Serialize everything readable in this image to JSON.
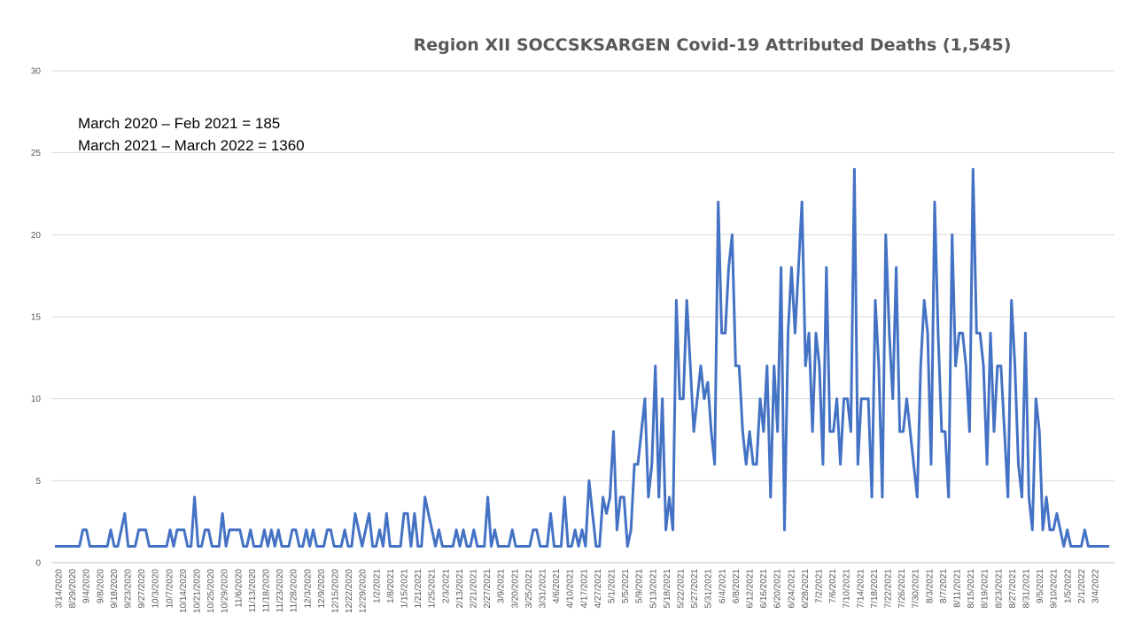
{
  "chart_data": {
    "type": "line",
    "title": "Region XII SOCCSKSARGEN Covid-19 Attributed Deaths (1,545)",
    "annotations": [
      "March 2020 – Feb 2021 = 185",
      "March 2021 – March 2022 =  1360"
    ],
    "xlabel": "",
    "ylabel": "",
    "ylim": [
      0,
      30
    ],
    "yticks": [
      0,
      5,
      10,
      15,
      20,
      25,
      30
    ],
    "grid": true,
    "legend": "none",
    "colors": {
      "line": "#4472c4"
    },
    "x_tick_labels": [
      "3/14/2020",
      "8/29/2020",
      "9/4/2020",
      "9/8/2020",
      "9/18/2020",
      "9/23/2020",
      "9/27/2020",
      "10/3/2020",
      "10/7/2020",
      "10/14/2020",
      "10/21/2020",
      "10/25/2020",
      "10/29/2020",
      "11/6/2020",
      "11/13/2020",
      "11/18/2020",
      "11/23/2020",
      "11/28/2020",
      "12/3/2020",
      "12/9/2020",
      "12/15/2020",
      "12/22/2020",
      "12/29/2020",
      "1/2/2021",
      "1/8/2021",
      "1/15/2021",
      "1/21/2021",
      "1/25/2021",
      "2/3/2021",
      "2/13/2021",
      "2/21/2021",
      "2/27/2021",
      "3/9/2021",
      "3/20/2021",
      "3/25/2021",
      "3/31/2021",
      "4/6/2021",
      "4/10/2021",
      "4/17/2021",
      "4/27/2021",
      "5/1/2021",
      "5/5/2021",
      "5/9/2021",
      "5/13/2021",
      "5/18/2021",
      "5/22/2021",
      "5/27/2021",
      "5/31/2021",
      "6/4/2021",
      "6/8/2021",
      "6/12/2021",
      "6/16/2021",
      "6/20/2021",
      "6/24/2021",
      "6/28/2021",
      "7/2/2021",
      "7/6/2021",
      "7/10/2021",
      "7/14/2021",
      "7/18/2021",
      "7/22/2021",
      "7/26/2021",
      "7/30/2021",
      "8/3/2021",
      "8/7/2021",
      "8/11/2021",
      "8/15/2021",
      "8/19/2021",
      "8/23/2021",
      "8/27/2021",
      "8/31/2021",
      "9/5/2021",
      "9/10/2021",
      "1/5/2022",
      "2/1/2022",
      "3/4/2022"
    ],
    "series": [
      {
        "values": [
          1,
          1,
          1,
          1,
          1,
          1,
          1,
          1,
          2,
          2,
          1,
          1,
          1,
          1,
          1,
          1,
          2,
          1,
          1,
          2,
          3,
          1,
          1,
          1,
          2,
          2,
          2,
          1,
          1,
          1,
          1,
          1,
          1,
          2,
          1,
          2,
          2,
          2,
          1,
          1,
          4,
          1,
          1,
          2,
          2,
          1,
          1,
          1,
          3,
          1,
          2,
          2,
          2,
          2,
          1,
          1,
          2,
          1,
          1,
          1,
          2,
          1,
          2,
          1,
          2,
          1,
          1,
          1,
          2,
          2,
          1,
          1,
          2,
          1,
          2,
          1,
          1,
          1,
          2,
          2,
          1,
          1,
          1,
          2,
          1,
          1,
          3,
          2,
          1,
          2,
          3,
          1,
          1,
          2,
          1,
          3,
          1,
          1,
          1,
          1,
          3,
          3,
          1,
          3,
          1,
          1,
          4,
          3,
          2,
          1,
          2,
          1,
          1,
          1,
          1,
          2,
          1,
          2,
          1,
          1,
          2,
          1,
          1,
          1,
          4,
          1,
          2,
          1,
          1,
          1,
          1,
          2,
          1,
          1,
          1,
          1,
          1,
          2,
          2,
          1,
          1,
          1,
          3,
          1,
          1,
          1,
          4,
          1,
          1,
          2,
          1,
          2,
          1,
          5,
          3,
          1,
          1,
          4,
          3,
          4,
          8,
          2,
          4,
          4,
          1,
          2,
          6,
          6,
          8,
          10,
          4,
          6,
          12,
          4,
          10,
          2,
          4,
          2,
          16,
          10,
          10,
          16,
          12,
          8,
          10,
          12,
          10,
          11,
          8,
          6,
          22,
          14,
          14,
          18,
          20,
          12,
          12,
          8,
          6,
          8,
          6,
          6,
          10,
          8,
          12,
          4,
          12,
          8,
          18,
          2,
          14,
          18,
          14,
          18,
          22,
          12,
          14,
          8,
          14,
          12,
          6,
          18,
          8,
          8,
          10,
          6,
          10,
          10,
          8,
          24,
          6,
          10,
          10,
          10,
          4,
          16,
          12,
          4,
          20,
          14,
          10,
          18,
          8,
          8,
          10,
          8,
          6,
          4,
          12,
          16,
          14,
          6,
          22,
          14,
          8,
          8,
          4,
          20,
          12,
          14,
          14,
          12,
          8,
          24,
          14,
          14,
          12,
          6,
          14,
          8,
          12,
          12,
          8,
          4,
          16,
          12,
          6,
          4,
          14,
          4,
          2,
          10,
          8,
          2,
          4,
          2,
          2,
          3,
          2,
          1,
          2,
          1,
          1,
          1,
          1,
          2,
          1,
          1,
          1,
          1,
          1,
          1,
          1
        ]
      }
    ]
  }
}
